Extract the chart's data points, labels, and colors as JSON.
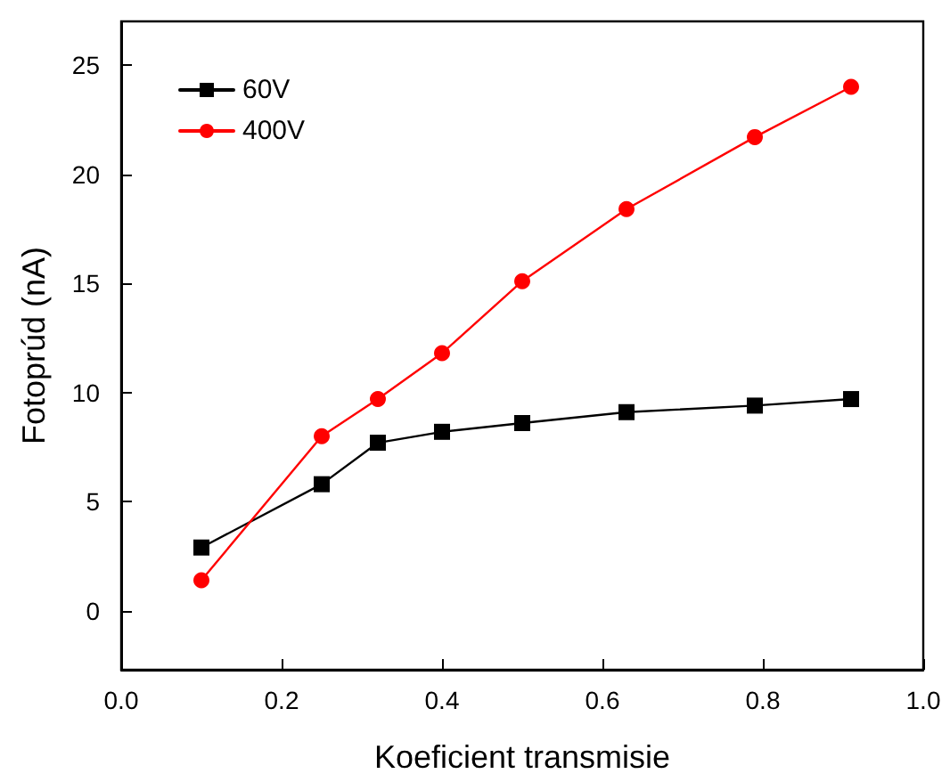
{
  "chart_data": {
    "type": "line",
    "xlabel": "Koeficient transmisie",
    "ylabel": "Fotoprúd (nA)",
    "xlim": [
      0,
      1
    ],
    "xticks": [
      {
        "value": 0,
        "label": "0.0"
      },
      {
        "value": 0.2,
        "label": "0.2"
      },
      {
        "value": 0.4,
        "label": "0.4"
      },
      {
        "value": 0.6,
        "label": "0.6"
      },
      {
        "value": 0.8,
        "label": "0.8"
      },
      {
        "value": 1,
        "label": "1.0"
      }
    ],
    "ylim": [
      -2.7,
      27
    ],
    "yticks": [
      0,
      5,
      10,
      15,
      20,
      25
    ],
    "x": [
      0.1,
      0.25,
      0.32,
      0.4,
      0.5,
      0.63,
      0.79,
      0.91
    ],
    "series": [
      {
        "name": "60V",
        "color": "#000000",
        "marker": "square",
        "values": [
          2.9,
          5.8,
          7.7,
          8.2,
          8.6,
          9.1,
          9.4,
          9.7
        ]
      },
      {
        "name": "400V",
        "color": "#ff0000",
        "marker": "circle",
        "values": [
          1.4,
          8.0,
          9.7,
          11.8,
          15.1,
          18.4,
          21.7,
          24.0
        ]
      }
    ],
    "legend": "top left",
    "grid": false,
    "line_style": "solid"
  }
}
